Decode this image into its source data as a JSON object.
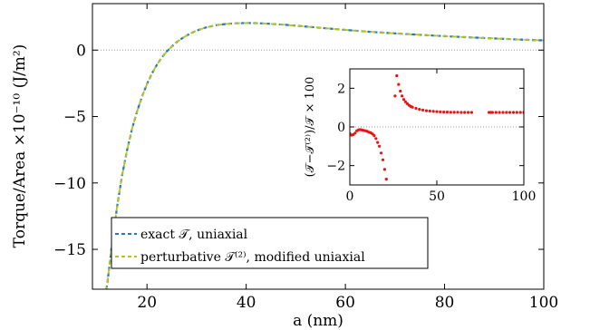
{
  "chart_data": [
    {
      "type": "line",
      "title": "",
      "xlabel": "a (nm)",
      "ylabel": "Torque/Area ×10⁻¹⁰ (J/m²)",
      "xlim": [
        9,
        100
      ],
      "ylim": [
        -18,
        3.5
      ],
      "xticks": [
        "20",
        "40",
        "60",
        "80",
        "100"
      ],
      "yticks": [
        "0",
        "−5",
        "−10",
        "−15"
      ],
      "xtick_values": [
        20,
        40,
        60,
        80,
        100
      ],
      "ytick_values": [
        0,
        -5,
        -10,
        -15
      ],
      "reference_line_y": 0,
      "legend_position": "bottom-left",
      "series": [
        {
          "name": "exact 𝒯, uniaxial",
          "color": "#1f77d4",
          "x": [
            11.8,
            12,
            13,
            14,
            15,
            16,
            17,
            18,
            19,
            20,
            21,
            22,
            23,
            24,
            25,
            26,
            27,
            28,
            29,
            30,
            32,
            34,
            36,
            38,
            40,
            42,
            44,
            46,
            48,
            50,
            55,
            60,
            65,
            70,
            75,
            80,
            85,
            90,
            95,
            100
          ],
          "values": [
            -18,
            -17.6,
            -14.4,
            -11.7,
            -9.4,
            -7.5,
            -5.9,
            -4.6,
            -3.5,
            -2.55,
            -1.75,
            -1.1,
            -0.55,
            -0.1,
            0.28,
            0.6,
            0.87,
            1.1,
            1.3,
            1.47,
            1.72,
            1.88,
            1.97,
            2.02,
            2.04,
            2.03,
            2.0,
            1.95,
            1.9,
            1.84,
            1.68,
            1.52,
            1.38,
            1.26,
            1.15,
            1.05,
            0.96,
            0.88,
            0.8,
            0.73
          ]
        },
        {
          "name": "perturbative 𝒯⁽²⁾, modified uniaxial",
          "color": "#b8c41a",
          "x": [
            11.8,
            12,
            13,
            14,
            15,
            16,
            17,
            18,
            19,
            20,
            21,
            22,
            23,
            24,
            25,
            26,
            27,
            28,
            29,
            30,
            32,
            34,
            36,
            38,
            40,
            42,
            44,
            46,
            48,
            50,
            55,
            60,
            65,
            70,
            75,
            80,
            85,
            90,
            95,
            100
          ],
          "values": [
            -18,
            -17.6,
            -14.4,
            -11.7,
            -9.4,
            -7.5,
            -5.9,
            -4.6,
            -3.5,
            -2.55,
            -1.75,
            -1.1,
            -0.55,
            -0.1,
            0.28,
            0.6,
            0.87,
            1.1,
            1.3,
            1.47,
            1.72,
            1.88,
            1.97,
            2.02,
            2.04,
            2.03,
            2.0,
            1.95,
            1.9,
            1.84,
            1.68,
            1.52,
            1.38,
            1.26,
            1.15,
            1.05,
            0.96,
            0.88,
            0.8,
            0.73
          ]
        }
      ]
    },
    {
      "type": "scatter",
      "title": "",
      "xlabel": "",
      "ylabel": "(𝒯−𝒯⁽²⁾)/𝒯 × 100",
      "xlim": [
        0,
        100
      ],
      "ylim": [
        -3,
        3
      ],
      "xticks": [
        "0",
        "50",
        "100"
      ],
      "yticks": [
        "2",
        "0",
        "−2"
      ],
      "xtick_values": [
        0,
        50,
        100
      ],
      "ytick_values": [
        2,
        0,
        -2
      ],
      "reference_line_y": 0,
      "series": [
        {
          "name": "",
          "color": "#ee1111",
          "x": [
            0,
            1,
            2,
            3,
            4,
            5,
            6,
            7,
            8,
            9,
            10,
            11,
            12,
            13,
            14,
            15,
            16,
            17,
            18,
            19,
            20,
            21,
            26,
            27,
            28,
            29,
            30,
            31,
            32,
            33,
            34,
            35,
            36,
            38,
            40,
            42,
            44,
            46,
            48,
            50,
            52,
            54,
            56,
            58,
            60,
            62,
            64,
            66,
            68,
            70,
            80,
            81,
            82,
            84,
            86,
            88,
            90,
            92,
            94,
            96,
            98,
            100
          ],
          "values": [
            -0.35,
            -0.42,
            -0.4,
            -0.32,
            -0.2,
            -0.15,
            -0.14,
            -0.16,
            -0.18,
            -0.2,
            -0.23,
            -0.27,
            -0.3,
            -0.36,
            -0.45,
            -0.6,
            -0.8,
            -1.0,
            -1.35,
            -1.7,
            -2.2,
            -2.7,
            1.6,
            2.65,
            2.2,
            1.85,
            1.6,
            1.42,
            1.3,
            1.2,
            1.12,
            1.06,
            1.02,
            0.96,
            0.91,
            0.87,
            0.84,
            0.82,
            0.8,
            0.79,
            0.78,
            0.77,
            0.77,
            0.76,
            0.76,
            0.76,
            0.75,
            0.75,
            0.75,
            0.75,
            0.75,
            0.75,
            0.75,
            0.75,
            0.75,
            0.75,
            0.75,
            0.75,
            0.75,
            0.75,
            0.75,
            0.75
          ]
        }
      ]
    }
  ]
}
